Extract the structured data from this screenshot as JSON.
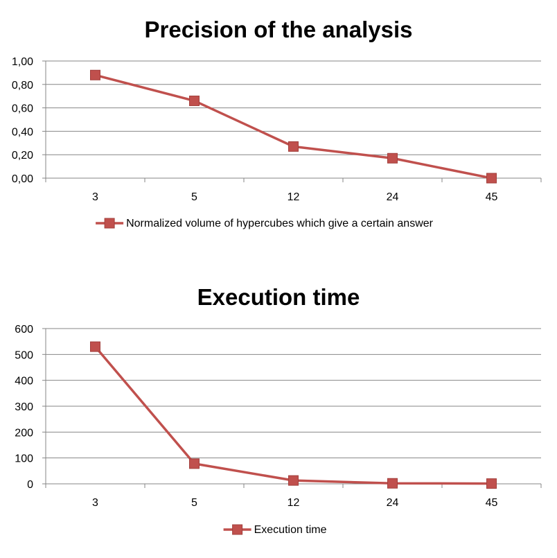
{
  "chart_data": [
    {
      "type": "line",
      "title": "Precision of the analysis",
      "categories": [
        "3",
        "5",
        "12",
        "24",
        "45"
      ],
      "series": [
        {
          "name": "Normalized volume of hypercubes which give a certain answer",
          "values": [
            0.88,
            0.66,
            0.27,
            0.17,
            0.0
          ]
        }
      ],
      "y_ticks": [
        "0,00",
        "0,20",
        "0,40",
        "0,60",
        "0,80",
        "1,00"
      ],
      "ylim": [
        0,
        1
      ],
      "grid": true,
      "legend": "bottom",
      "color": "#c0504d"
    },
    {
      "type": "line",
      "title": "Execution time",
      "categories": [
        "3",
        "5",
        "12",
        "24",
        "45"
      ],
      "series": [
        {
          "name": "Execution time",
          "values": [
            530,
            78,
            13,
            2,
            1
          ]
        }
      ],
      "y_ticks": [
        "0",
        "100",
        "200",
        "300",
        "400",
        "500",
        "600"
      ],
      "ylim": [
        0,
        600
      ],
      "grid": true,
      "legend": "bottom",
      "color": "#c0504d"
    }
  ]
}
